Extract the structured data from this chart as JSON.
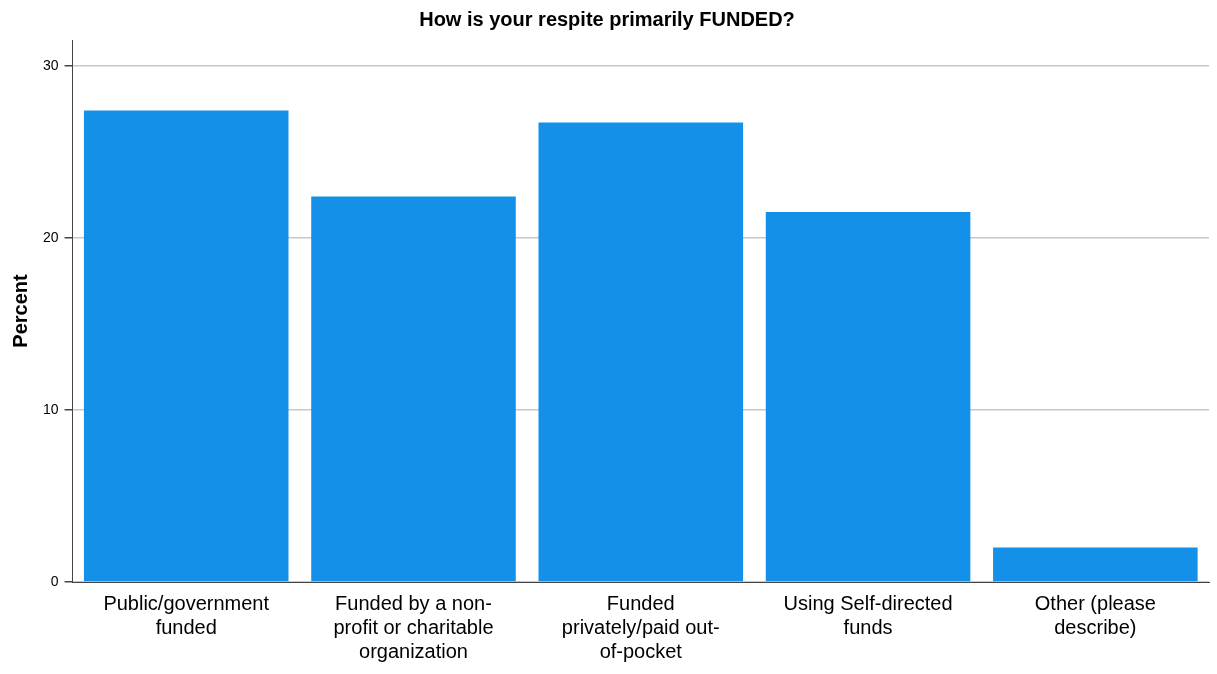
{
  "chart_data": {
    "type": "bar",
    "title": "How is your respite primarily FUNDED?",
    "ylabel": "Percent",
    "categories": [
      "Public/government funded",
      "Funded by a non-profit or charitable organization",
      "Funded privately/paid out-of-pocket",
      "Using Self-directed funds",
      "Other (please describe)"
    ],
    "values": [
      27.4,
      22.4,
      26.7,
      21.5,
      2.0
    ],
    "color": "#1490e8",
    "ylim": [
      0,
      31.5
    ],
    "yticks": [
      0,
      10,
      20,
      30
    ],
    "grid": "y"
  }
}
